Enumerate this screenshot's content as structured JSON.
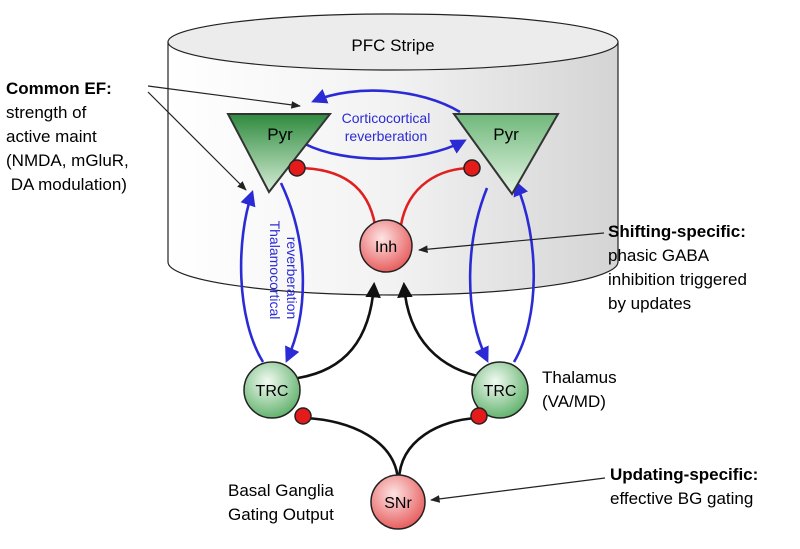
{
  "cylinder": {
    "title": "PFC Stripe"
  },
  "nodes": {
    "pyr_left": "Pyr",
    "pyr_right": "Pyr",
    "inh": "Inh",
    "trc_left": "TRC",
    "trc_right": "TRC",
    "snr": "SNr"
  },
  "pathway_labels": {
    "corticocortical": [
      "Corticocortical",
      "reverberation"
    ],
    "thalamocortical": [
      "Thalamocortical",
      "reverberation"
    ]
  },
  "annotations": {
    "common_ef": {
      "heading": "Common EF:",
      "lines": [
        "strength of",
        "active maint",
        "(NMDA, mGluR,",
        " DA modulation)"
      ]
    },
    "shifting": {
      "heading": "Shifting-specific:",
      "lines": [
        "phasic GABA",
        "inhibition triggered",
        "by updates"
      ]
    },
    "thalamus": {
      "lines": [
        "Thalamus",
        "(VA/MD)"
      ]
    },
    "basal_ganglia": {
      "lines": [
        "Basal Ganglia",
        "Gating Output"
      ]
    },
    "updating": {
      "heading": "Updating-specific:",
      "lines": [
        "effective BG gating"
      ]
    }
  },
  "colors": {
    "excitatory_cortical": "#2b2bd6",
    "inhibitory": "#e02020",
    "subcortical": "#111111",
    "pyr_fill_dark": "#2e8a3e",
    "pyr_fill_light": "#b5ddb5",
    "inh_fill": "#f07a7a"
  }
}
